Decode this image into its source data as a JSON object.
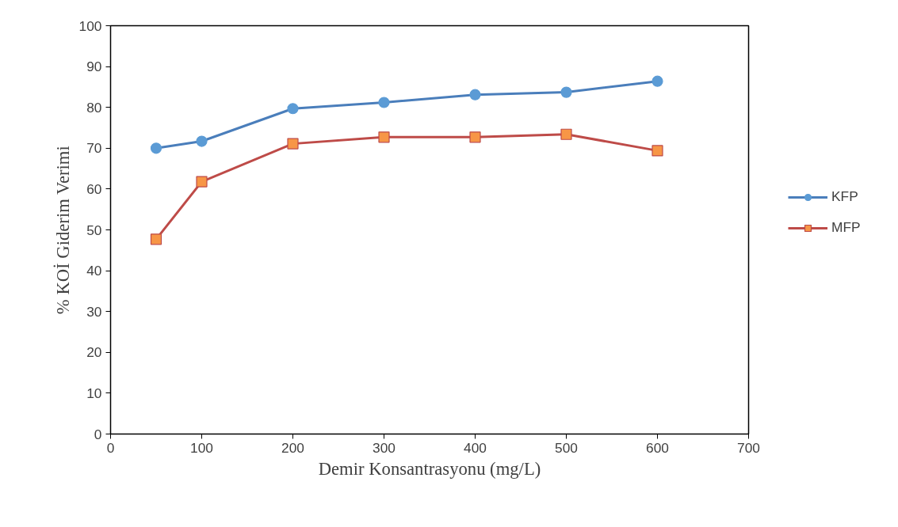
{
  "chart_data": {
    "type": "line",
    "xlabel": "Demir Konsantrasyonu (mg/L)",
    "ylabel": "% KOİ Giderim Verimi",
    "x": [
      50,
      100,
      200,
      300,
      400,
      500,
      600
    ],
    "series": [
      {
        "name": "KFP",
        "color": "#4a7ebb",
        "marker": "circle",
        "values": [
          70.0,
          71.7,
          79.7,
          81.2,
          83.1,
          83.7,
          86.4
        ]
      },
      {
        "name": "MFP",
        "color": "#be4b48",
        "marker": "square",
        "values": [
          47.7,
          61.8,
          71.1,
          72.7,
          72.7,
          73.4,
          69.4
        ]
      }
    ],
    "xlim": [
      0,
      700
    ],
    "xticks": [
      0,
      100,
      200,
      300,
      400,
      500,
      600,
      700
    ],
    "ylim": [
      0,
      100
    ],
    "yticks": [
      0,
      10,
      20,
      30,
      40,
      50,
      60,
      70,
      80,
      90,
      100
    ],
    "grid": false,
    "legend": "right"
  }
}
